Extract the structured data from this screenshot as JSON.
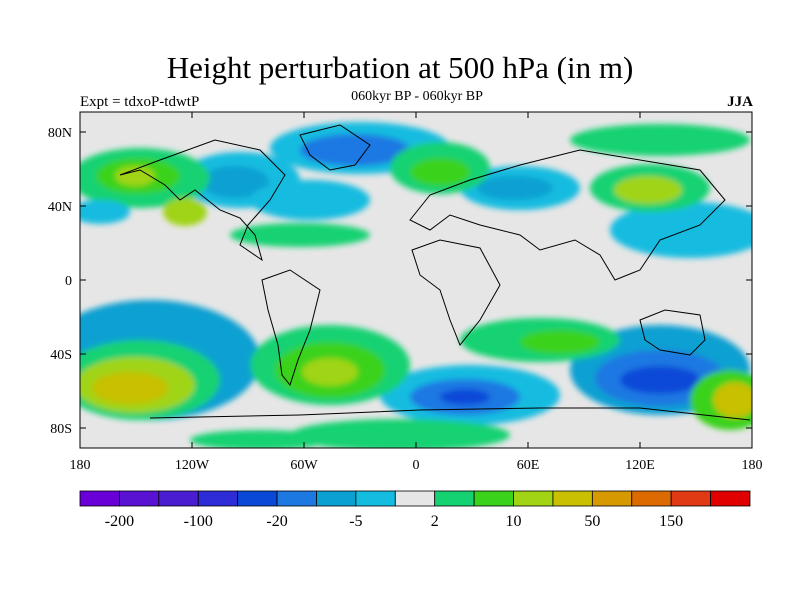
{
  "map": {
    "title": "Height perturbation at 500 hPa (in m)",
    "subtitle": "060kyr BP - 060kyr BP",
    "left_label": "Expt = tdxoP-tdwtP",
    "right_label": "JJA",
    "lon_ticks": [
      "180",
      "120W",
      "60W",
      "0",
      "60E",
      "120E",
      "180"
    ],
    "lat_ticks": [
      "80N",
      "40N",
      "0",
      "40S",
      "80S"
    ],
    "colorbar": {
      "colors": [
        "#6a00d8",
        "#5a12d2",
        "#4a1ed0",
        "#2e2cd6",
        "#0a48d8",
        "#1e78e2",
        "#0aa0d2",
        "#14bce0",
        "#e6e6e6",
        "#14d272",
        "#3ad21a",
        "#a0d414",
        "#c8c000",
        "#d69a00",
        "#dc6a00",
        "#e03a14",
        "#e00000"
      ],
      "labels": [
        "-200",
        "-100",
        "-20",
        "-5",
        "2",
        "10",
        "50",
        "150"
      ]
    }
  }
}
